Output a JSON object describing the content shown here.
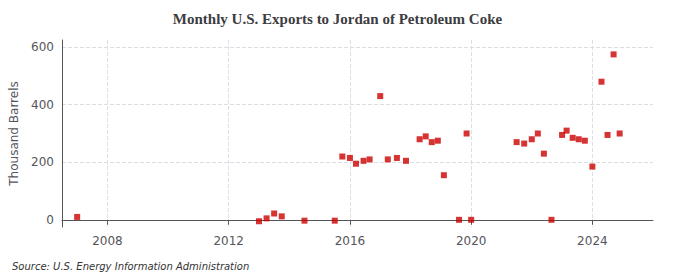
{
  "chart_data": {
    "type": "scatter",
    "title": "Monthly U.S. Exports to Jordan of Petroleum Coke",
    "ylabel": "Thousand Barrels",
    "annotations": [
      "Source: U.S. Energy Information Administration"
    ],
    "color": "#cc0000",
    "marker": "square",
    "grid": true,
    "xlim": [
      2006.5,
      2026.0
    ],
    "xticks": [
      2008,
      2012,
      2016,
      2020,
      2024
    ],
    "ylim": [
      -25,
      625
    ],
    "yticks": [
      0,
      200,
      400,
      600
    ],
    "x": [
      2007.0,
      2013.0,
      2013.25,
      2013.5,
      2013.75,
      2014.5,
      2015.5,
      2015.75,
      2016.0,
      2016.2,
      2016.45,
      2016.65,
      2017.0,
      2017.25,
      2017.55,
      2017.85,
      2018.3,
      2018.5,
      2018.7,
      2018.9,
      2019.1,
      2019.6,
      2019.85,
      2020.0,
      2021.5,
      2021.75,
      2022.0,
      2022.2,
      2022.4,
      2022.65,
      2023.0,
      2023.15,
      2023.35,
      2023.55,
      2023.75,
      2024.0,
      2024.3,
      2024.5,
      2024.7,
      2024.9
    ],
    "values": [
      10,
      -5,
      5,
      22,
      12,
      -3,
      -3,
      220,
      215,
      195,
      205,
      210,
      430,
      210,
      215,
      205,
      280,
      290,
      270,
      275,
      155,
      0,
      300,
      0,
      270,
      265,
      280,
      300,
      230,
      0,
      295,
      310,
      285,
      280,
      275,
      185,
      480,
      295,
      575,
      300
    ]
  }
}
